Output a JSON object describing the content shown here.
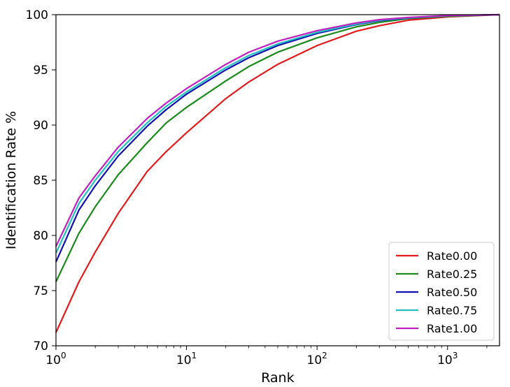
{
  "chart_data": {
    "type": "line",
    "title": "",
    "xlabel": "Rank",
    "ylabel": "Identification Rate %",
    "xscale": "log",
    "xlim": [
      1,
      2500
    ],
    "ylim": [
      70,
      100
    ],
    "xticks": [
      {
        "value": 1,
        "base": "10",
        "exp": "0"
      },
      {
        "value": 10,
        "base": "10",
        "exp": "1"
      },
      {
        "value": 100,
        "base": "10",
        "exp": "2"
      },
      {
        "value": 1000,
        "base": "10",
        "exp": "3"
      }
    ],
    "yticks": [
      "70",
      "75",
      "80",
      "85",
      "90",
      "95",
      "100"
    ],
    "grid": false,
    "legend_position": "lower-right",
    "x": [
      1,
      1.5,
      2,
      3,
      5,
      7,
      10,
      20,
      30,
      50,
      100,
      200,
      300,
      500,
      1000,
      2500
    ],
    "series": [
      {
        "name": "Rate0.00",
        "color": "#e31a1c",
        "values": [
          71.2,
          75.8,
          78.5,
          82.0,
          85.8,
          87.6,
          89.3,
          92.4,
          93.9,
          95.5,
          97.2,
          98.5,
          99.0,
          99.5,
          99.8,
          100
        ]
      },
      {
        "name": "Rate0.25",
        "color": "#1a8a1a",
        "values": [
          75.8,
          80.2,
          82.6,
          85.5,
          88.4,
          90.2,
          91.6,
          94.0,
          95.3,
          96.6,
          97.9,
          98.9,
          99.3,
          99.65,
          99.85,
          100
        ]
      },
      {
        "name": "Rate0.50",
        "color": "#1010b0",
        "values": [
          77.6,
          82.3,
          84.5,
          87.2,
          89.9,
          91.4,
          92.8,
          95.0,
          96.1,
          97.2,
          98.3,
          99.1,
          99.45,
          99.7,
          99.9,
          100
        ]
      },
      {
        "name": "Rate0.75",
        "color": "#20c0c0",
        "values": [
          78.4,
          82.9,
          85.0,
          87.6,
          90.2,
          91.7,
          93.0,
          95.2,
          96.3,
          97.35,
          98.4,
          99.15,
          99.5,
          99.72,
          99.9,
          100
        ]
      },
      {
        "name": "Rate1.00",
        "color": "#c020c0",
        "values": [
          79.0,
          83.4,
          85.4,
          88.0,
          90.6,
          92.0,
          93.3,
          95.5,
          96.6,
          97.6,
          98.55,
          99.25,
          99.55,
          99.75,
          99.92,
          100
        ]
      }
    ]
  }
}
